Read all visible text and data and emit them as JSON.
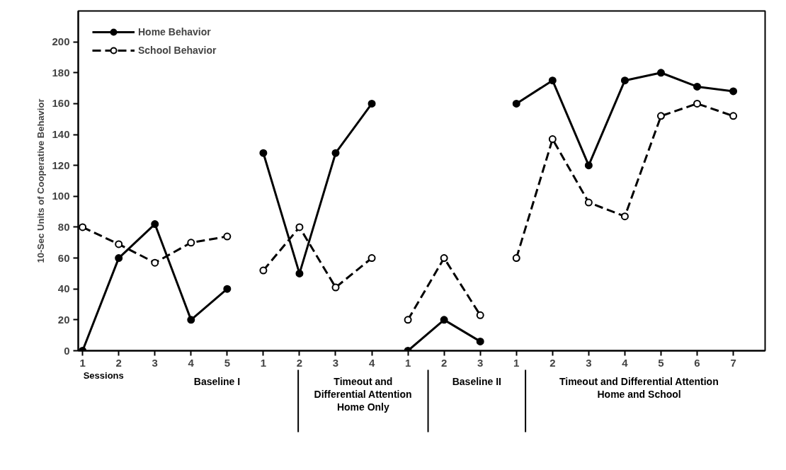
{
  "chart_data": {
    "type": "line",
    "ylabel": "10-Sec Units of Cooperative Behavior",
    "xlabel": "Sessions",
    "categories": [
      "1",
      "2",
      "3",
      "4",
      "5",
      "1",
      "2",
      "3",
      "4",
      "1",
      "2",
      "3",
      "1",
      "2",
      "3",
      "4",
      "5",
      "6",
      "7"
    ],
    "ylim": [
      0,
      220
    ],
    "yticks": [
      0,
      20,
      40,
      60,
      80,
      100,
      120,
      140,
      160,
      180,
      200
    ],
    "grid": false,
    "legend": "top left",
    "marker": "circle",
    "series": [
      {
        "name": "Home Behavior",
        "color": "#000000",
        "line_style": "solid",
        "values": [
          0,
          60,
          82,
          20,
          40,
          null,
          null,
          null,
          null,
          null,
          null,
          null,
          null,
          null,
          null,
          null,
          null,
          null,
          null
        ]
      },
      {
        "name": "School Behavior",
        "color": "#000000",
        "line_style": "dashed",
        "values": [
          80,
          69,
          57,
          70,
          74,
          null,
          null,
          null,
          null,
          null,
          null,
          null,
          null,
          null,
          null,
          null,
          null,
          null,
          null
        ]
      },
      {
        "color": "#000000",
        "line_style": "solid",
        "values": [
          null,
          null,
          null,
          null,
          null,
          128,
          50,
          128,
          160,
          null,
          null,
          null,
          null,
          null,
          null,
          null,
          null,
          null,
          null
        ]
      },
      {
        "color": "#000000",
        "line_style": "dashed",
        "values": [
          null,
          null,
          null,
          null,
          null,
          52,
          80,
          41,
          60,
          null,
          null,
          null,
          null,
          null,
          null,
          null,
          null,
          null,
          null
        ]
      },
      {
        "color": "#000000",
        "line_style": "solid",
        "values": [
          null,
          null,
          null,
          null,
          null,
          null,
          null,
          null,
          null,
          0,
          20,
          6,
          null,
          null,
          null,
          null,
          null,
          null,
          null
        ]
      },
      {
        "color": "#000000",
        "line_style": "dashed",
        "values": [
          null,
          null,
          null,
          null,
          null,
          null,
          null,
          null,
          null,
          20,
          60,
          23,
          null,
          null,
          null,
          null,
          null,
          null,
          null
        ]
      },
      {
        "color": "#000000",
        "line_style": "solid",
        "values": [
          null,
          null,
          null,
          null,
          null,
          null,
          null,
          null,
          null,
          null,
          null,
          null,
          160,
          175,
          120,
          175,
          180,
          171,
          168
        ]
      },
      {
        "color": "#000000",
        "line_style": "dashed",
        "values": [
          null,
          null,
          null,
          null,
          null,
          null,
          null,
          null,
          null,
          null,
          null,
          null,
          60,
          137,
          96,
          87,
          152,
          160,
          152
        ]
      }
    ],
    "annotations": [
      "Baseline I",
      "Timeout and\nDifferential Attention\nHome Only",
      "Baseline II",
      "Timeout and Differential Attention\nHome and School"
    ]
  }
}
